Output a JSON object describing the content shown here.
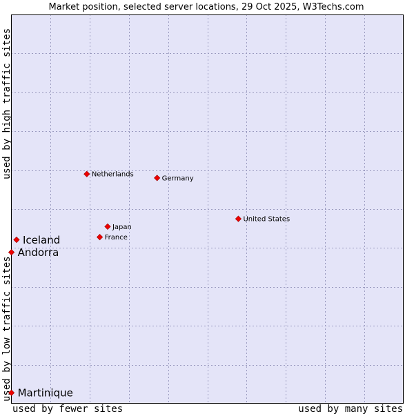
{
  "chart_data": {
    "type": "scatter",
    "title": "Market position, selected server locations, 29 Oct 2025, W3Techs.com",
    "xlabel_left": "used by fewer sites",
    "xlabel_right": "used by many sites",
    "ylabel_bottom": "used by low traffic sites",
    "ylabel_top": "used by high traffic sites",
    "xlim": [
      0,
      100
    ],
    "ylim": [
      0,
      100
    ],
    "grid": true,
    "colors": {
      "plot_bg": "#e4e4f8",
      "grid": "#9a9abf",
      "marker": "#ee0000"
    },
    "points": [
      {
        "label": "Netherlands",
        "x": 19.3,
        "y": 59.0,
        "highlight": false
      },
      {
        "label": "Germany",
        "x": 37.2,
        "y": 58.0,
        "highlight": false
      },
      {
        "label": "United States",
        "x": 57.9,
        "y": 47.5,
        "highlight": false
      },
      {
        "label": "Japan",
        "x": 24.6,
        "y": 45.5,
        "highlight": false
      },
      {
        "label": "France",
        "x": 22.6,
        "y": 42.8,
        "highlight": false
      },
      {
        "label": "Iceland",
        "x": 1.4,
        "y": 42.1,
        "highlight": true
      },
      {
        "label": "Andorra",
        "x": 0.1,
        "y": 38.9,
        "highlight": true
      },
      {
        "label": "Martinique",
        "x": 0.1,
        "y": 2.8,
        "highlight": true
      }
    ]
  }
}
